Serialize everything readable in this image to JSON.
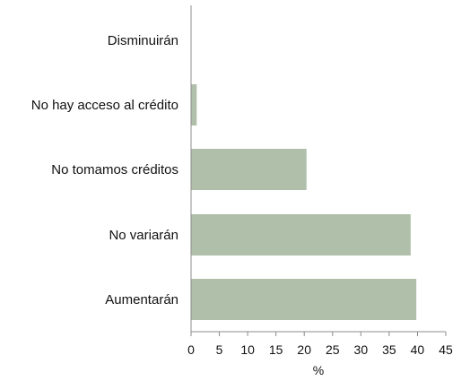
{
  "chart_data": {
    "type": "bar",
    "orientation": "horizontal",
    "categories": [
      "Disminuirán",
      "No hay acceso al crédito",
      "No tomamos créditos",
      "No variarán",
      "Aumentarán"
    ],
    "values": [
      0,
      1,
      20.4,
      38.8,
      39.8
    ],
    "xlabel": "%",
    "ylabel": "",
    "xlim": [
      0,
      45
    ],
    "xticks": [
      0,
      5,
      10,
      15,
      20,
      25,
      30,
      35,
      40,
      45
    ],
    "grid": false,
    "legend": "none",
    "colors": {
      "bar": "#b0bfaa",
      "axis": "#8c8c8c",
      "text": "#111111"
    }
  }
}
